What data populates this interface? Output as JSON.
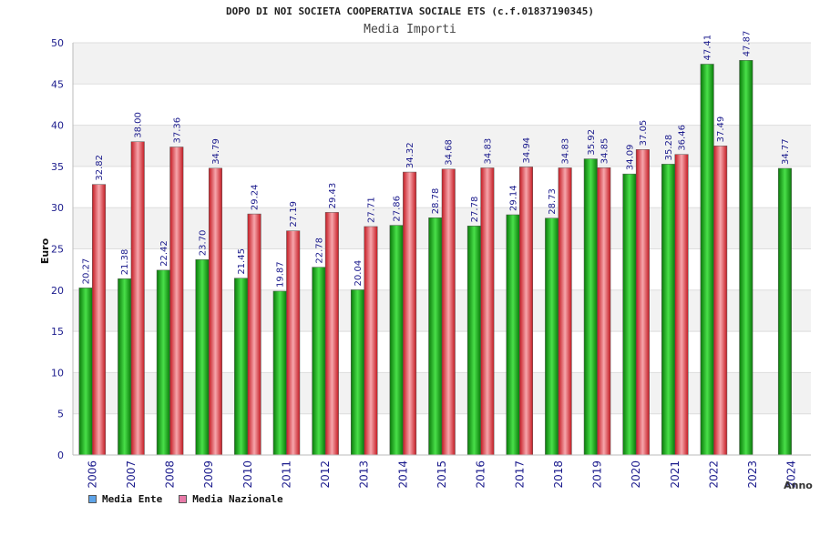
{
  "chart_data": {
    "type": "bar",
    "title": "DOPO DI NOI SOCIETA COOPERATIVA SOCIALE ETS (c.f.01837190345)",
    "subtitle": "Media Importi",
    "xlabel": "Anno",
    "ylabel": "Euro",
    "ylim": [
      0,
      50
    ],
    "yticks": [
      0,
      5,
      10,
      15,
      20,
      25,
      30,
      35,
      40,
      45,
      50
    ],
    "categories": [
      "2006",
      "2007",
      "2008",
      "2009",
      "2010",
      "2011",
      "2012",
      "2013",
      "2014",
      "2015",
      "2016",
      "2017",
      "2018",
      "2019",
      "2020",
      "2021",
      "2022",
      "2023",
      "2024"
    ],
    "series": [
      {
        "name": "Media Ente",
        "color": "#22b722",
        "values": [
          20.27,
          21.38,
          22.42,
          23.7,
          21.45,
          19.87,
          22.78,
          20.04,
          27.86,
          28.78,
          27.78,
          29.14,
          28.73,
          35.92,
          34.09,
          35.28,
          47.41,
          47.87,
          34.77
        ],
        "labels": [
          "20.27",
          "21.38",
          "22.42",
          "23.70",
          "21.45",
          "19.87",
          "22.78",
          "20.04",
          "27.86",
          "28.78",
          "27.78",
          "29.14",
          "28.73",
          "35.92",
          "34.09",
          "35.28",
          "47.41",
          "47.87",
          "34.77"
        ]
      },
      {
        "name": "Media Nazionale",
        "color": "#e8383e",
        "values": [
          32.82,
          38.0,
          37.36,
          34.79,
          29.24,
          27.19,
          29.43,
          27.71,
          34.32,
          34.68,
          34.83,
          34.94,
          34.83,
          34.85,
          37.05,
          36.46,
          37.49,
          null,
          null
        ],
        "labels": [
          "32.82",
          "38.00",
          "37.36",
          "34.79",
          "29.24",
          "27.19",
          "29.43",
          "27.71",
          "34.32",
          "34.68",
          "34.83",
          "34.94",
          "34.83",
          "34.85",
          "37.05",
          "36.46",
          "37.49",
          null,
          null
        ]
      }
    ],
    "grid": true,
    "legend_position": "bottom-left",
    "legend_swatch_colors": [
      "#5da3e8",
      "#e87aa8"
    ]
  }
}
